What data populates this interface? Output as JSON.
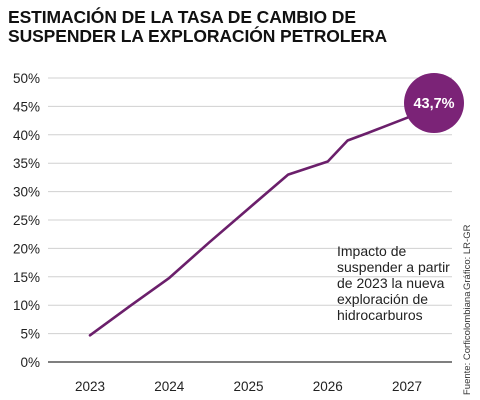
{
  "title_lines": [
    "ESTIMACIÓN DE LA TASA DE CAMBIO DE",
    "SUSPENDER LA EXPLORACIÓN PETROLERA"
  ],
  "annotation_lines": [
    "Impacto de",
    "suspender a partir",
    "de 2023 la nueva",
    "exploración de",
    "hidrocarburos"
  ],
  "credit_graphic": "Gráfico: LR-GR",
  "credit_source": "Fuente: Corficolombiana",
  "highlight_label": "43,7%",
  "colors": {
    "line": "#6b1f6b",
    "badge": "#7b2377",
    "grid": "#d0d0d0",
    "axis": "#333333"
  },
  "chart_data": {
    "type": "line",
    "title": "ESTIMACIÓN DE LA TASA DE CAMBIO DE SUSPENDER LA EXPLORACIÓN PETROLERA",
    "xlabel": "",
    "ylabel": "",
    "categories": [
      "2023",
      "2024",
      "2025",
      "2026",
      "2027"
    ],
    "yticks": [
      "0%",
      "5%",
      "10%",
      "15%",
      "20%",
      "25%",
      "30%",
      "35%",
      "40%",
      "45%",
      "50%"
    ],
    "ylim": [
      0,
      50
    ],
    "grid": true,
    "series": [
      {
        "x": [
          2023,
          2023.5,
          2024,
          2024.5,
          2025,
          2025.5,
          2026,
          2026.25,
          2026.5,
          2027,
          2027.45
        ],
        "values": [
          4.7,
          9.8,
          14.8,
          21.0,
          27.0,
          33.0,
          35.3,
          39.0,
          40.3,
          43.0,
          46.0
        ]
      }
    ],
    "annotations": [
      "43,7%"
    ]
  }
}
